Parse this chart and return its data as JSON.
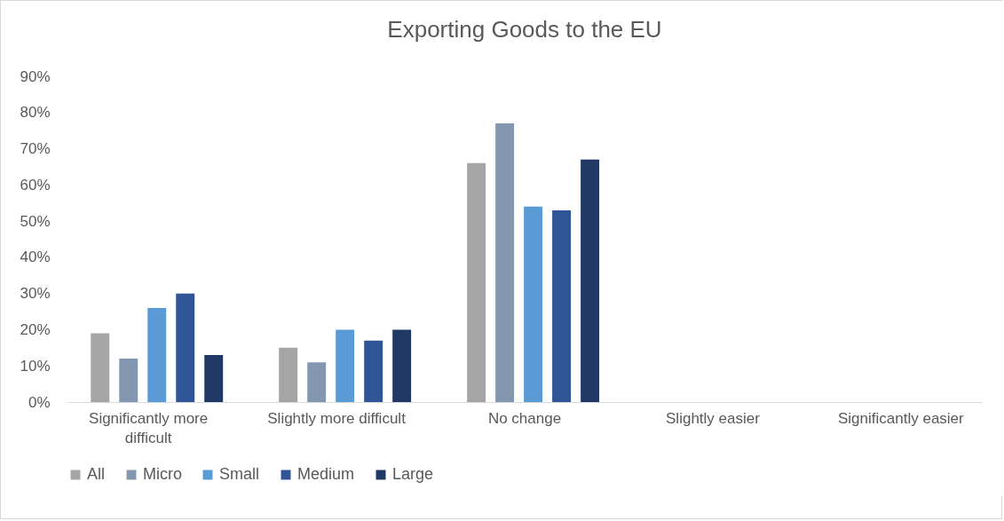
{
  "chart_data": {
    "type": "bar",
    "title": "Exporting Goods to the EU",
    "categories": [
      "Significantly more difficult",
      "Slightly more difficult",
      "No change",
      "Slightly easier",
      "Significantly easier"
    ],
    "series": [
      {
        "name": "All",
        "color": "#a5a5a5",
        "values": [
          19,
          15,
          66,
          0,
          0
        ]
      },
      {
        "name": "Micro",
        "color": "#8497b0",
        "values": [
          12,
          11,
          77,
          0,
          0
        ]
      },
      {
        "name": "Small",
        "color": "#5b9bd5",
        "values": [
          26,
          20,
          54,
          0,
          0
        ]
      },
      {
        "name": "Medium",
        "color": "#2f5597",
        "values": [
          30,
          17,
          53,
          0,
          0
        ]
      },
      {
        "name": "Large",
        "color": "#1f3864",
        "values": [
          13,
          20,
          67,
          0,
          0
        ]
      }
    ],
    "ylim": [
      0,
      90
    ],
    "yticks": [
      {
        "value": 0,
        "label": "0%"
      },
      {
        "value": 10,
        "label": "10%"
      },
      {
        "value": 20,
        "label": "20%"
      },
      {
        "value": 30,
        "label": "30%"
      },
      {
        "value": 40,
        "label": "40%"
      },
      {
        "value": 50,
        "label": "50%"
      },
      {
        "value": 60,
        "label": "60%"
      },
      {
        "value": 70,
        "label": "70%"
      },
      {
        "value": 80,
        "label": "80%"
      },
      {
        "value": 90,
        "label": "90%"
      }
    ],
    "grid": false,
    "legend": "bottom"
  }
}
